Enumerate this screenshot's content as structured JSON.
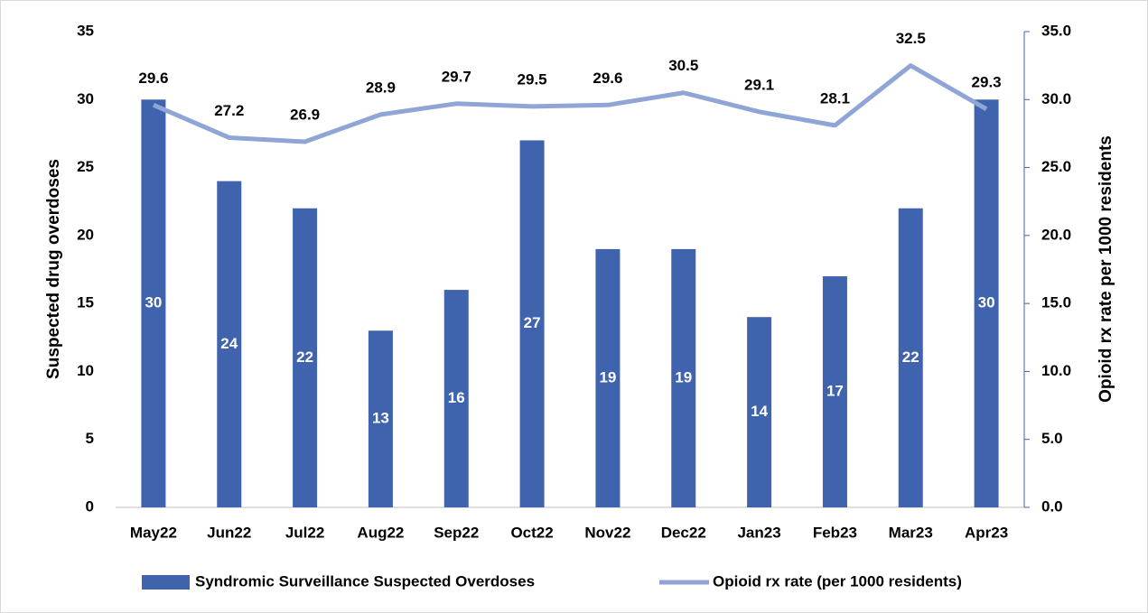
{
  "chart_data": {
    "type": "combo",
    "categories": [
      "May22",
      "Jun22",
      "Jul22",
      "Aug22",
      "Sep22",
      "Oct22",
      "Nov22",
      "Dec22",
      "Jan23",
      "Feb23",
      "Mar23",
      "Apr23"
    ],
    "series": [
      {
        "name": "Syndromic Surveillance Suspected Overdoses",
        "type": "bar",
        "color": "#4063ad",
        "values": [
          30,
          24,
          22,
          13,
          16,
          27,
          19,
          19,
          14,
          17,
          22,
          30
        ]
      },
      {
        "name": "Opioid rx rate (per 1000 residents)",
        "type": "line",
        "axis": "y2",
        "color": "#8fa5d6",
        "values": [
          29.6,
          27.2,
          26.9,
          28.9,
          29.7,
          29.5,
          29.6,
          30.5,
          29.1,
          28.1,
          32.5,
          29.3
        ]
      }
    ],
    "y_label": "Suspected drug overdoses",
    "y2_label": "Opioid rx rate per 1000 residents",
    "ylim": [
      0,
      35
    ],
    "yticks": [
      0,
      5,
      10,
      15,
      20,
      25,
      30,
      35
    ],
    "y2lim": [
      0,
      35
    ],
    "y2ticks": [
      {
        "value": 0,
        "label": "0.0"
      },
      {
        "value": 5,
        "label": "5.0"
      },
      {
        "value": 10,
        "label": "10.0"
      },
      {
        "value": 15,
        "label": "15.0"
      },
      {
        "value": 20,
        "label": "20.0"
      },
      {
        "value": 25,
        "label": "25.0"
      },
      {
        "value": 30,
        "label": "30.0"
      },
      {
        "value": 35,
        "label": "35.0"
      }
    ],
    "grid": false,
    "legend": "bottom"
  }
}
